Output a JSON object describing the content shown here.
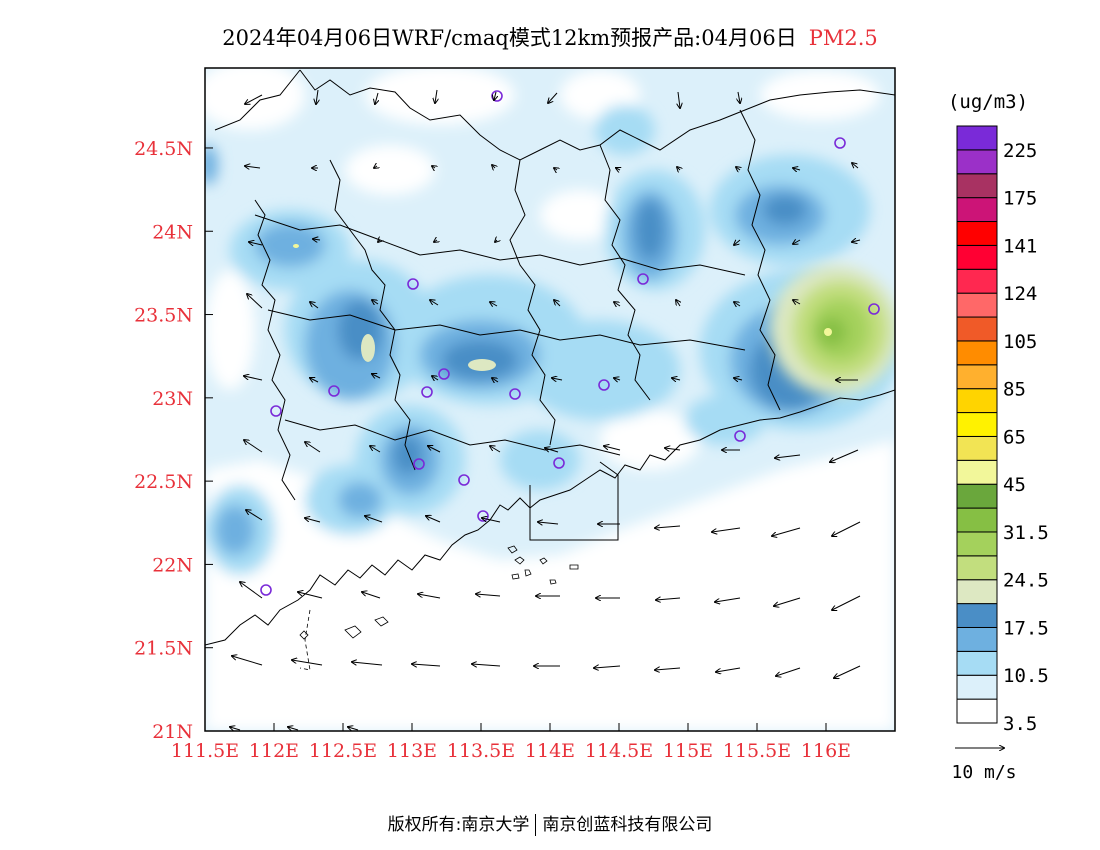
{
  "title": {
    "text": "2024年04月06日WRF/cmaq模式12km预报产品:04月06日",
    "pollutant": "PM2.5"
  },
  "map": {
    "lat_ticks": [
      "24.5N",
      "24N",
      "23.5N",
      "23N",
      "22.5N",
      "22N",
      "21.5N",
      "21N"
    ],
    "lon_ticks": [
      "111.5E",
      "112E",
      "112.5E",
      "113E",
      "113.5E",
      "114E",
      "114.5E",
      "115E",
      "115.5E",
      "116E"
    ],
    "lat_range": [
      21.0,
      24.98
    ],
    "lon_range": [
      111.5,
      116.5
    ]
  },
  "legend": {
    "unit": "(ug/m3)",
    "labels": [
      "225",
      "175",
      "141",
      "124",
      "105",
      "85",
      "65",
      "45",
      "31.5",
      "24.5",
      "17.5",
      "10.5",
      "3.5"
    ],
    "colors": [
      "#ffffff",
      "#dcf0fa",
      "#a6dcf4",
      "#6eb0e0",
      "#4a8ec6",
      "#dde8c2",
      "#c2de7e",
      "#a4d15c",
      "#86bf44",
      "#6aa73c",
      "#f2f79a",
      "#f2e454",
      "#fff200",
      "#ffd400",
      "#ffb02e",
      "#ff8c00",
      "#f05a28",
      "#ff6868",
      "#ff2850",
      "#ff0033",
      "#ff0000",
      "#cc1477",
      "#a83262",
      "#9b30c8",
      "#7a2ad8"
    ],
    "colors_order": "bottom-to-top",
    "wind_label": "10 m/s"
  },
  "footer": {
    "left": "版权所有:南京大学",
    "right": "南京创蓝科技有限公司"
  }
}
